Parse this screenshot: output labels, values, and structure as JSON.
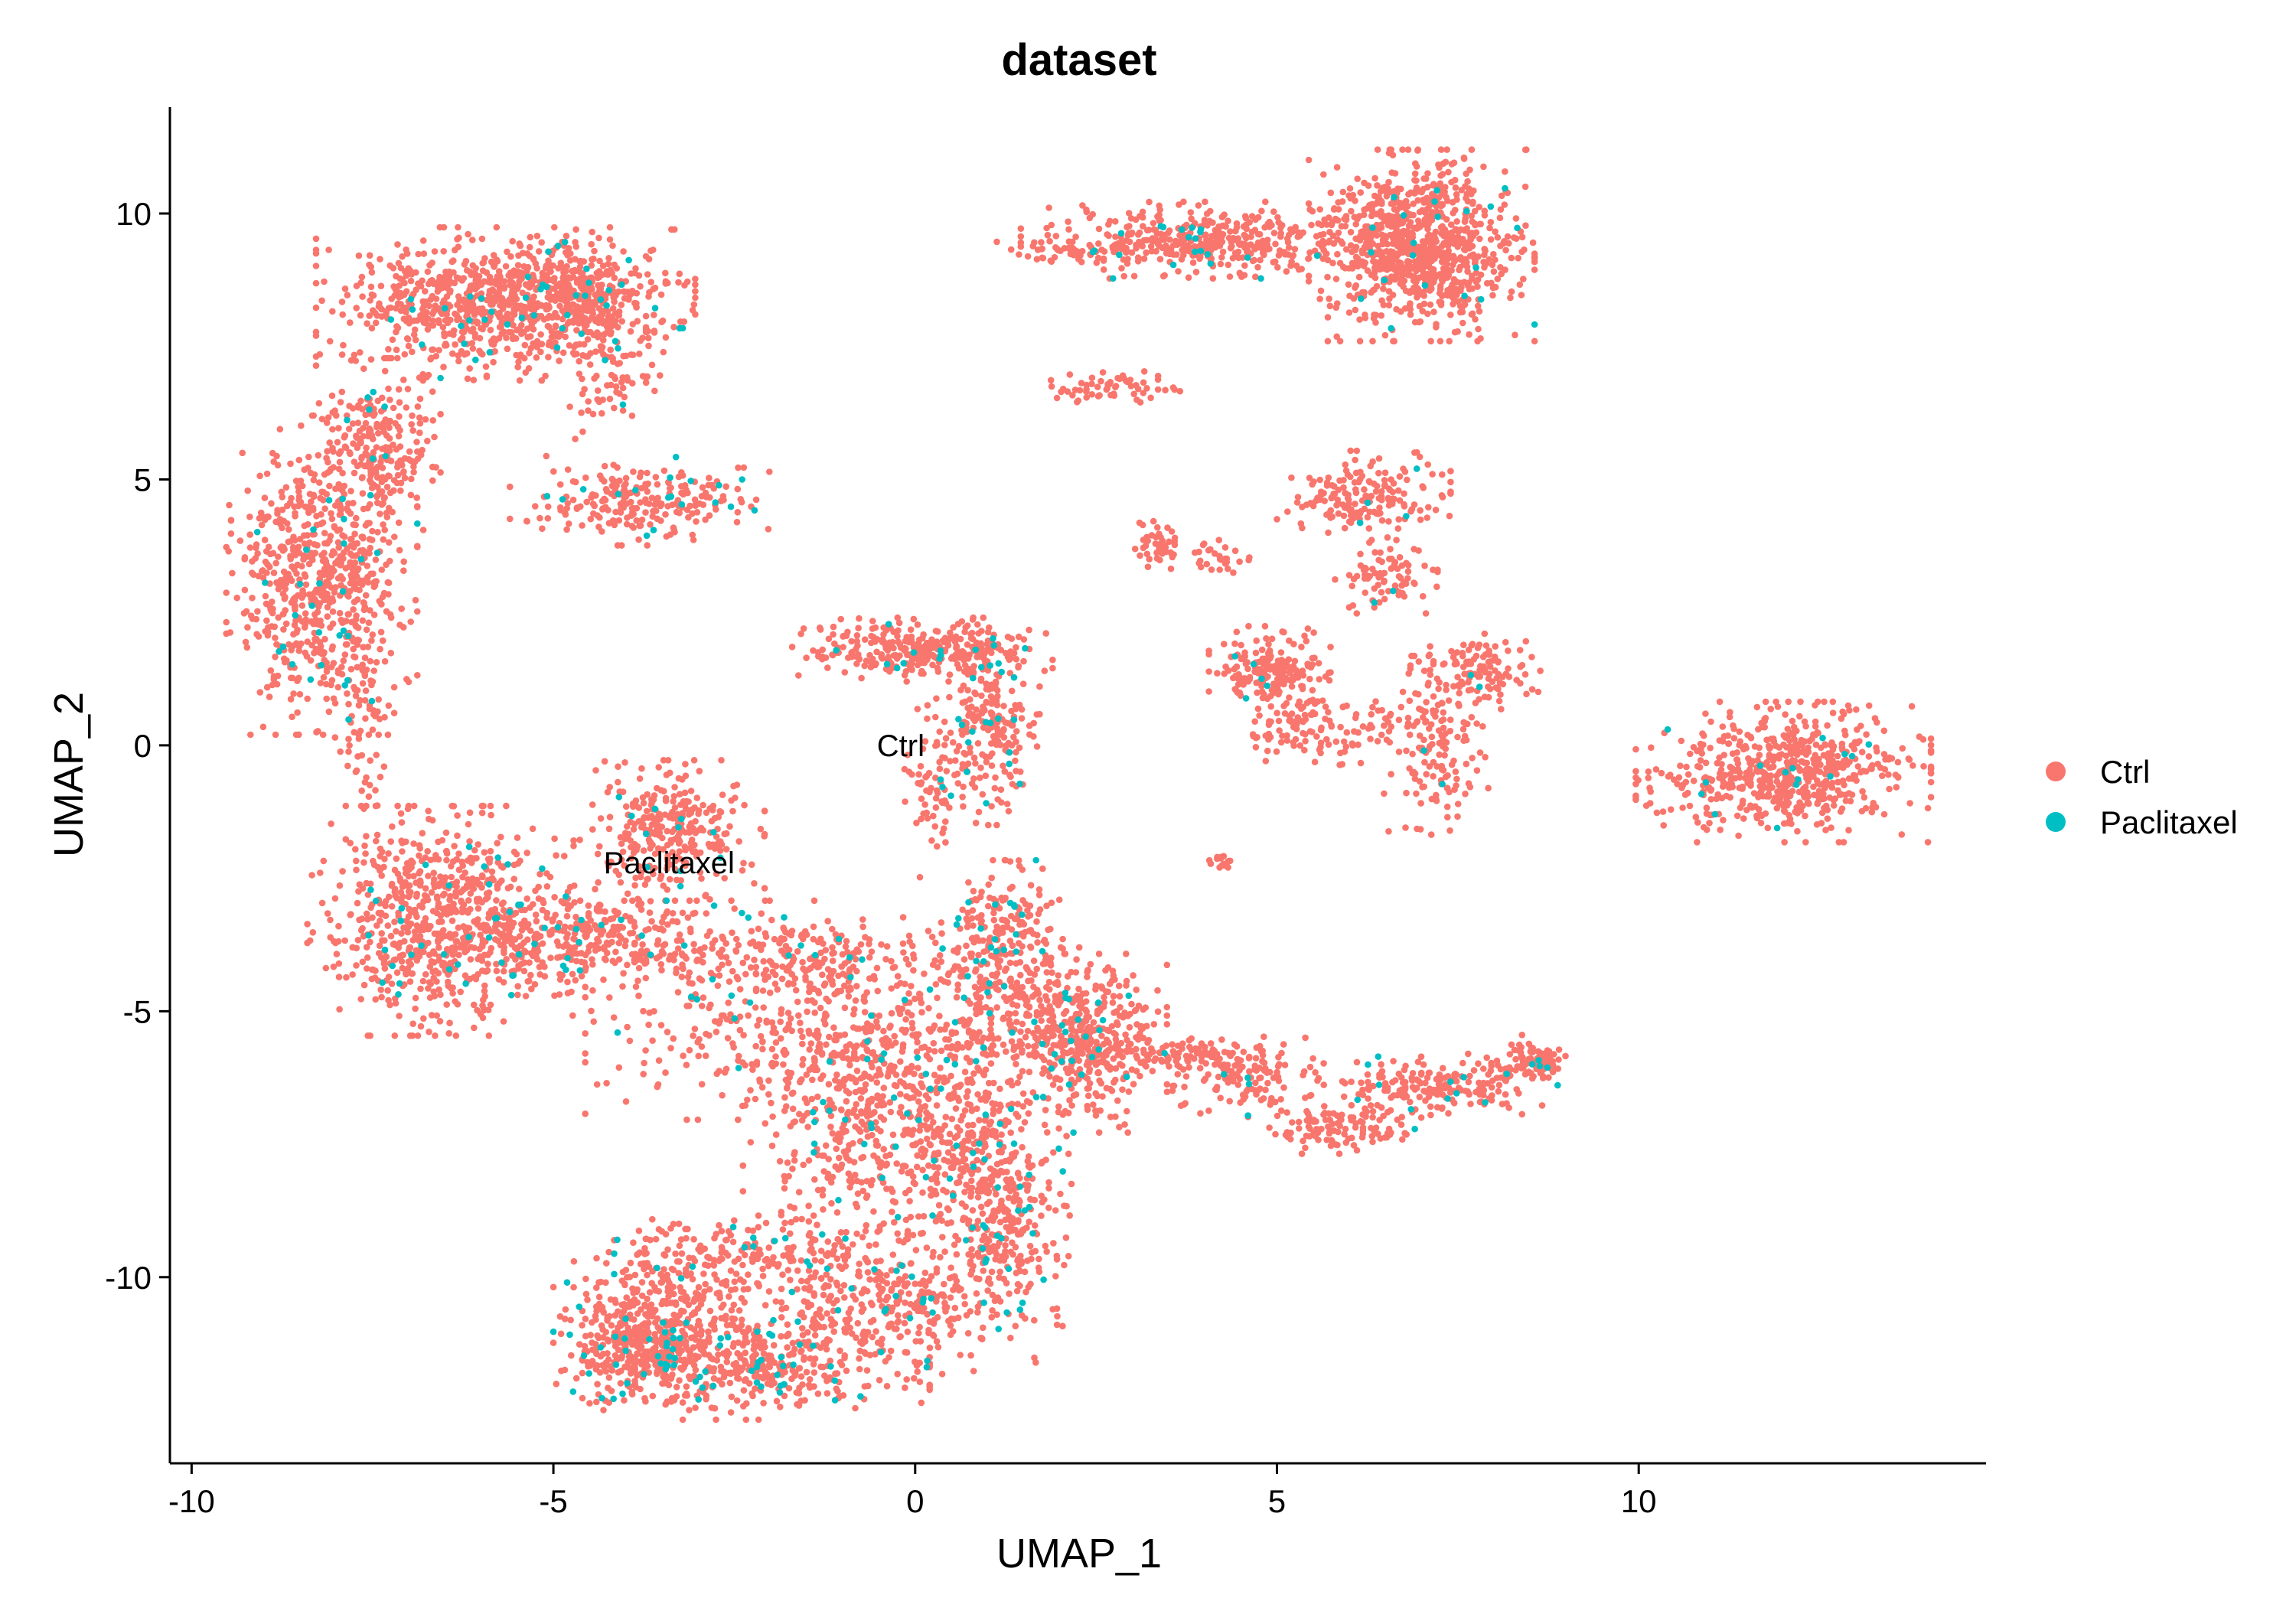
{
  "chart_data": {
    "type": "scatter",
    "title": "dataset",
    "xlabel": "UMAP_1",
    "ylabel": "UMAP_2",
    "xlim": [
      -10.3,
      14.8
    ],
    "ylim": [
      -13.5,
      12.0
    ],
    "x_ticks": [
      -10,
      -5,
      0,
      5,
      10
    ],
    "y_ticks": [
      -10,
      -5,
      0,
      5,
      10
    ],
    "x_tick_labels": [
      "-10",
      "-5",
      "0",
      "5",
      "10"
    ],
    "y_tick_labels": [
      "-10",
      "-5",
      "0",
      "5",
      "10"
    ],
    "grid": false,
    "legend_position": "right",
    "series": [
      {
        "name": "Ctrl",
        "color": "#F8766D"
      },
      {
        "name": "Paclitaxel",
        "color": "#00BFC4"
      }
    ],
    "cluster_labels": [
      {
        "text": "Ctrl",
        "x": -0.2,
        "y": 0.0
      },
      {
        "text": "Paclitaxel",
        "x": -3.4,
        "y": -2.2
      }
    ],
    "clusters": [
      {
        "x": -8.2,
        "y": 3.2,
        "sx": 0.55,
        "sy": 1.25,
        "n": 700,
        "p": 0.04
      },
      {
        "x": -7.4,
        "y": 5.6,
        "sx": 0.35,
        "sy": 0.7,
        "n": 220,
        "p": 0.04
      },
      {
        "x": -6.0,
        "y": 8.3,
        "sx": 0.95,
        "sy": 0.6,
        "n": 650,
        "p": 0.04
      },
      {
        "x": -4.6,
        "y": 8.5,
        "sx": 0.65,
        "sy": 0.5,
        "n": 380,
        "p": 0.05
      },
      {
        "x": -3.8,
        "y": 4.6,
        "sx": 0.75,
        "sy": 0.35,
        "n": 240,
        "p": 0.07
      },
      {
        "x": -4.2,
        "y": 7.2,
        "sx": 0.3,
        "sy": 0.6,
        "n": 90,
        "p": 0.03
      },
      {
        "x": -7.6,
        "y": 0.3,
        "sx": 0.25,
        "sy": 0.9,
        "n": 70,
        "p": 0.06
      },
      {
        "x": -6.6,
        "y": -3.3,
        "sx": 0.75,
        "sy": 0.9,
        "n": 700,
        "p": 0.05
      },
      {
        "x": -4.6,
        "y": -3.6,
        "sx": 1.0,
        "sy": 0.4,
        "n": 320,
        "p": 0.06
      },
      {
        "x": -3.4,
        "y": -1.6,
        "sx": 0.55,
        "sy": 0.55,
        "n": 300,
        "p": 0.06
      },
      {
        "x": -1.8,
        "y": -4.0,
        "sx": 1.5,
        "sy": 0.45,
        "n": 350,
        "p": 0.05
      },
      {
        "x": -1.2,
        "y": -5.6,
        "sx": 1.4,
        "sy": 0.6,
        "n": 350,
        "p": 0.03
      },
      {
        "x": 0.1,
        "y": 1.8,
        "sx": 0.75,
        "sy": 0.25,
        "n": 320,
        "p": 0.05
      },
      {
        "x": 1.0,
        "y": 0.3,
        "sx": 0.3,
        "sy": 0.75,
        "n": 220,
        "p": 0.07
      },
      {
        "x": 0.2,
        "y": -0.8,
        "sx": 0.2,
        "sy": 0.7,
        "n": 60,
        "p": 0.04
      },
      {
        "x": 1.2,
        "y": -3.6,
        "sx": 0.35,
        "sy": 0.6,
        "n": 200,
        "p": 0.08
      },
      {
        "x": 2.4,
        "y": -5.6,
        "sx": 0.45,
        "sy": 0.7,
        "n": 380,
        "p": 0.04
      },
      {
        "x": 1.5,
        "y": -5.0,
        "sx": 0.7,
        "sy": 0.5,
        "n": 200,
        "p": 0.04
      },
      {
        "x": -0.7,
        "y": -7.2,
        "sx": 0.7,
        "sy": 1.0,
        "n": 380,
        "p": 0.04
      },
      {
        "x": 0.8,
        "y": -7.5,
        "sx": 0.55,
        "sy": 1.0,
        "n": 320,
        "p": 0.06
      },
      {
        "x": 1.2,
        "y": -9.0,
        "sx": 0.4,
        "sy": 0.8,
        "n": 220,
        "p": 0.09
      },
      {
        "x": -0.2,
        "y": -10.5,
        "sx": 0.9,
        "sy": 0.55,
        "n": 320,
        "p": 0.07
      },
      {
        "x": -2.2,
        "y": -11.6,
        "sx": 1.0,
        "sy": 0.45,
        "n": 420,
        "p": 0.09
      },
      {
        "x": -3.8,
        "y": -11.3,
        "sx": 0.5,
        "sy": 0.5,
        "n": 380,
        "p": 0.08
      },
      {
        "x": -2.0,
        "y": -9.5,
        "sx": 0.9,
        "sy": 0.35,
        "n": 160,
        "p": 0.04
      },
      {
        "x": -3.4,
        "y": -10.2,
        "sx": 0.6,
        "sy": 0.5,
        "n": 180,
        "p": 0.07
      },
      {
        "x": 4.1,
        "y": 9.5,
        "sx": 1.1,
        "sy": 0.3,
        "n": 420,
        "p": 0.03
      },
      {
        "x": 2.5,
        "y": 9.3,
        "sx": 0.6,
        "sy": 0.1,
        "n": 60,
        "p": 0.02
      },
      {
        "x": 7.0,
        "y": 9.4,
        "sx": 0.65,
        "sy": 0.75,
        "n": 900,
        "p": 0.02
      },
      {
        "x": 2.7,
        "y": 6.7,
        "sx": 0.4,
        "sy": 0.15,
        "n": 60,
        "p": 0.01
      },
      {
        "x": 6.2,
        "y": 4.7,
        "sx": 0.5,
        "sy": 0.35,
        "n": 180,
        "p": 0.02
      },
      {
        "x": 6.5,
        "y": 3.2,
        "sx": 0.3,
        "sy": 0.3,
        "n": 80,
        "p": 0.01
      },
      {
        "x": 3.4,
        "y": 3.8,
        "sx": 0.15,
        "sy": 0.2,
        "n": 40,
        "p": 0.0
      },
      {
        "x": 4.2,
        "y": 3.5,
        "sx": 0.2,
        "sy": 0.15,
        "n": 30,
        "p": 0.0
      },
      {
        "x": 4.9,
        "y": 1.4,
        "sx": 0.35,
        "sy": 0.35,
        "n": 200,
        "p": 0.01
      },
      {
        "x": 5.6,
        "y": 0.3,
        "sx": 0.6,
        "sy": 0.3,
        "n": 120,
        "p": 0.01
      },
      {
        "x": 7.2,
        "y": 0.0,
        "sx": 0.3,
        "sy": 0.7,
        "n": 150,
        "p": 0.02
      },
      {
        "x": 7.8,
        "y": 1.4,
        "sx": 0.35,
        "sy": 0.3,
        "n": 110,
        "p": 0.04
      },
      {
        "x": 4.2,
        "y": -2.2,
        "sx": 0.1,
        "sy": 0.1,
        "n": 15,
        "p": 0.0
      },
      {
        "x": 4.5,
        "y": -6.2,
        "sx": 0.6,
        "sy": 0.3,
        "n": 150,
        "p": 0.03
      },
      {
        "x": 5.8,
        "y": -7.2,
        "sx": 0.5,
        "sy": 0.2,
        "n": 110,
        "p": 0.01
      },
      {
        "x": 7.2,
        "y": -6.4,
        "sx": 0.7,
        "sy": 0.25,
        "n": 200,
        "p": 0.06
      },
      {
        "x": 8.5,
        "y": -5.9,
        "sx": 0.25,
        "sy": 0.2,
        "n": 80,
        "p": 0.06
      },
      {
        "x": 3.7,
        "y": -5.8,
        "sx": 0.5,
        "sy": 0.12,
        "n": 60,
        "p": 0.01
      },
      {
        "x": 12.0,
        "y": -0.5,
        "sx": 0.85,
        "sy": 0.55,
        "n": 620,
        "p": 0.02
      }
    ]
  },
  "legend": {
    "items": [
      {
        "label": "Ctrl",
        "color": "#F8766D"
      },
      {
        "label": "Paclitaxel",
        "color": "#00BFC4"
      }
    ]
  }
}
